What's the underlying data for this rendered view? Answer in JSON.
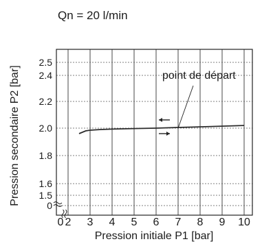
{
  "chart_data": {
    "type": "line",
    "title": "Qn = 20 l/min",
    "xlabel": "Pression initiale P1 [bar]",
    "ylabel": "Pression secondaire P2 [bar]",
    "x_ticks": [
      0,
      2,
      3,
      4,
      5,
      6,
      7,
      8,
      9,
      10
    ],
    "x_tick_labels": [
      "0",
      "2",
      "3",
      "4",
      "5",
      "6",
      "7",
      "8",
      "9",
      "10"
    ],
    "y_ticks": [
      0,
      1.5,
      1.6,
      1.8,
      2.0,
      2.2,
      2.4,
      2.5
    ],
    "y_tick_labels": [
      "0",
      "1.5",
      "1.6",
      "1.8",
      "2.0",
      "2.2",
      "2.4",
      "2.5"
    ],
    "xlim": [
      0,
      10.5
    ],
    "ylim": [
      0,
      2.6
    ],
    "axis_breaks": {
      "x": true,
      "y": true
    },
    "grid": true,
    "series": [
      {
        "x": [
          2.5,
          2.8,
          3.0,
          3.5,
          4,
          5,
          6,
          7,
          8,
          9,
          10
        ],
        "y": [
          1.96,
          1.98,
          1.985,
          1.99,
          1.993,
          1.997,
          2.0,
          2.005,
          2.01,
          2.015,
          2.02
        ],
        "color": "#2a2a2a"
      }
    ],
    "annotation": {
      "text": "point de départ",
      "x": 7,
      "y": 2.0
    }
  }
}
